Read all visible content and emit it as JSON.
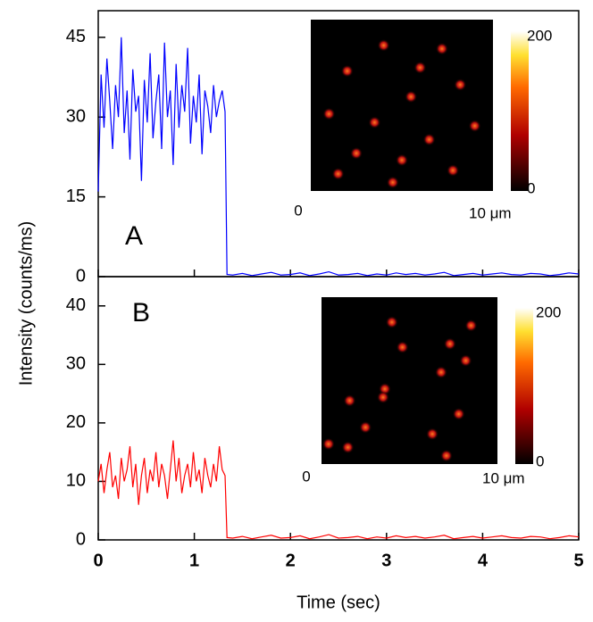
{
  "chart_data": [
    {
      "type": "line",
      "panel_label": "A",
      "ylabel": "Intensity (counts/ms)",
      "xlim": [
        0,
        5
      ],
      "ylim": [
        0,
        50
      ],
      "yticks": [
        0,
        15,
        30,
        45
      ],
      "x": [
        0,
        0.03,
        0.06,
        0.09,
        0.12,
        0.15,
        0.18,
        0.21,
        0.24,
        0.27,
        0.3,
        0.33,
        0.36,
        0.39,
        0.42,
        0.45,
        0.48,
        0.51,
        0.54,
        0.57,
        0.6,
        0.63,
        0.66,
        0.69,
        0.72,
        0.75,
        0.78,
        0.81,
        0.84,
        0.87,
        0.9,
        0.93,
        0.96,
        0.99,
        1.02,
        1.05,
        1.08,
        1.11,
        1.14,
        1.17,
        1.2,
        1.23,
        1.26,
        1.29,
        1.32,
        1.34,
        1.4,
        1.5,
        1.6,
        1.7,
        1.8,
        1.9,
        2,
        2.1,
        2.2,
        2.3,
        2.4,
        2.5,
        2.6,
        2.7,
        2.8,
        2.9,
        3,
        3.1,
        3.2,
        3.3,
        3.4,
        3.5,
        3.6,
        3.7,
        3.8,
        3.9,
        4,
        4.1,
        4.2,
        4.3,
        4.4,
        4.5,
        4.6,
        4.7,
        4.8,
        4.9,
        5
      ],
      "series": [
        {
          "color": "#0000ff",
          "values": [
            16,
            38,
            28,
            41,
            33,
            24,
            36,
            30,
            45,
            27,
            35,
            22,
            39,
            31,
            34,
            18,
            37,
            29,
            42,
            26,
            33,
            38,
            24,
            44,
            30,
            35,
            21,
            40,
            28,
            36,
            31,
            43,
            25,
            34,
            29,
            38,
            23,
            35,
            32,
            27,
            36,
            30,
            33,
            35,
            31,
            0.4,
            0.3,
            0.6,
            0.2,
            0.5,
            0.8,
            0.3,
            0.4,
            0.7,
            0.2,
            0.5,
            0.9,
            0.3,
            0.4,
            0.6,
            0.2,
            0.5,
            0.3,
            0.7,
            0.4,
            0.6,
            0.3,
            0.5,
            0.8,
            0.2,
            0.4,
            0.6,
            0.3,
            0.5,
            0.7,
            0.4,
            0.3,
            0.6,
            0.5,
            0.2,
            0.4,
            0.7,
            0.5
          ]
        }
      ],
      "inset": {
        "xticks": [
          0,
          {
            "value": 10,
            "label": "10 μm"
          }
        ],
        "colorbar_ticks": [
          0,
          200
        ]
      }
    },
    {
      "type": "line",
      "panel_label": "B",
      "xlabel": "Time (sec)",
      "xlim": [
        0,
        5
      ],
      "xticks": [
        0,
        1,
        2,
        3,
        4,
        5
      ],
      "ylim": [
        0,
        45
      ],
      "yticks": [
        0,
        10,
        20,
        30,
        40
      ],
      "x": [
        0,
        0.03,
        0.06,
        0.09,
        0.12,
        0.15,
        0.18,
        0.21,
        0.24,
        0.27,
        0.3,
        0.33,
        0.36,
        0.39,
        0.42,
        0.45,
        0.48,
        0.51,
        0.54,
        0.57,
        0.6,
        0.63,
        0.66,
        0.69,
        0.72,
        0.75,
        0.78,
        0.81,
        0.84,
        0.87,
        0.9,
        0.93,
        0.96,
        0.99,
        1.02,
        1.05,
        1.08,
        1.11,
        1.14,
        1.17,
        1.2,
        1.23,
        1.26,
        1.29,
        1.32,
        1.34,
        1.4,
        1.5,
        1.6,
        1.7,
        1.8,
        1.9,
        2,
        2.1,
        2.2,
        2.3,
        2.4,
        2.5,
        2.6,
        2.7,
        2.8,
        2.9,
        3,
        3.1,
        3.2,
        3.3,
        3.4,
        3.5,
        3.6,
        3.7,
        3.8,
        3.9,
        4,
        4.1,
        4.2,
        4.3,
        4.4,
        4.5,
        4.6,
        4.7,
        4.8,
        4.9,
        5
      ],
      "series": [
        {
          "color": "#ff0000",
          "values": [
            10,
            13,
            8,
            12,
            15,
            9,
            11,
            7,
            14,
            10,
            12,
            16,
            9,
            13,
            6,
            11,
            14,
            8,
            12,
            10,
            15,
            9,
            13,
            11,
            7,
            12,
            17,
            10,
            14,
            8,
            11,
            13,
            9,
            15,
            10,
            12,
            8,
            14,
            11,
            9,
            13,
            10,
            16,
            12,
            11,
            0.4,
            0.3,
            0.6,
            0.2,
            0.5,
            0.8,
            0.3,
            0.4,
            0.7,
            0.2,
            0.5,
            0.9,
            0.3,
            0.4,
            0.6,
            0.2,
            0.5,
            0.3,
            0.7,
            0.4,
            0.6,
            0.3,
            0.5,
            0.8,
            0.2,
            0.4,
            0.6,
            0.3,
            0.5,
            0.7,
            0.4,
            0.3,
            0.6,
            0.5,
            0.2,
            0.4,
            0.7,
            0.5
          ]
        }
      ],
      "inset": {
        "xticks": [
          0,
          {
            "value": 10,
            "label": "10 μm"
          }
        ],
        "colorbar_ticks": [
          0,
          200
        ]
      }
    }
  ]
}
